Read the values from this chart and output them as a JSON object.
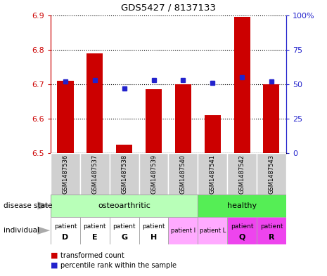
{
  "title": "GDS5427 / 8137133",
  "samples": [
    "GSM1487536",
    "GSM1487537",
    "GSM1487538",
    "GSM1487539",
    "GSM1487540",
    "GSM1487541",
    "GSM1487542",
    "GSM1487543"
  ],
  "red_values": [
    6.71,
    6.79,
    6.525,
    6.685,
    6.7,
    6.61,
    6.895,
    6.7
  ],
  "blue_percentiles": [
    52,
    53,
    47,
    53,
    53,
    51,
    55,
    52
  ],
  "ylim_left": [
    6.5,
    6.9
  ],
  "ylim_right": [
    0,
    100
  ],
  "yticks_left": [
    6.5,
    6.6,
    6.7,
    6.8,
    6.9
  ],
  "yticks_right": [
    0,
    25,
    50,
    75,
    100
  ],
  "bar_color": "#cc0000",
  "dot_color": "#2222cc",
  "bar_base": 6.5,
  "sample_bg": "#d0d0d0",
  "disease_oa_color": "#b8ffb8",
  "disease_h_color": "#55ee55",
  "indiv_white": "#ffffff",
  "indiv_pink_light": "#ffaaff",
  "indiv_pink_bright": "#ee44ee",
  "indiv_colors_idx": [
    0,
    0,
    0,
    0,
    1,
    1,
    2,
    2
  ],
  "indiv_labels_top": [
    "patient",
    "patient",
    "patient",
    "patient",
    "patient I",
    "patient L",
    "patient",
    "patient"
  ],
  "indiv_labels_bot": [
    "D",
    "E",
    "G",
    "H",
    "",
    "",
    "Q",
    "R"
  ],
  "indiv_large": [
    true,
    true,
    true,
    true,
    false,
    false,
    true,
    true
  ]
}
